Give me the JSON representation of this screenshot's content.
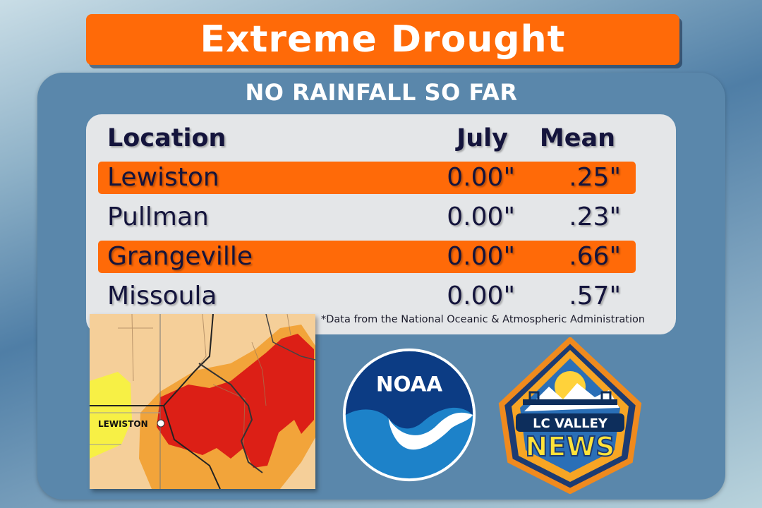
{
  "title": "Extreme Drought",
  "subtitle": "NO RAINFALL SO FAR",
  "table": {
    "headers": {
      "location": "Location",
      "july": "July",
      "mean": "Mean"
    },
    "rows": [
      {
        "location": "Lewiston",
        "july": "0.00\"",
        "mean": ".25\"",
        "highlight": true
      },
      {
        "location": "Pullman",
        "july": "0.00\"",
        "mean": ".23\"",
        "highlight": false
      },
      {
        "location": "Grangeville",
        "july": "0.00\"",
        "mean": ".66\"",
        "highlight": true
      },
      {
        "location": "Missoula",
        "july": "0.00\"",
        "mean": ".57\"",
        "highlight": false
      }
    ]
  },
  "footnote": "*Data from the National Oceanic & Atmospheric Administration",
  "map": {
    "city_label": "LEWISTON"
  },
  "logos": {
    "noaa_text": "NOAA",
    "lc_valley_text": "LC VALLEY",
    "news_text": "NEWS"
  },
  "colors": {
    "accent": "#ff6a08",
    "panel": "#5a87ab",
    "text": "#14143c"
  }
}
